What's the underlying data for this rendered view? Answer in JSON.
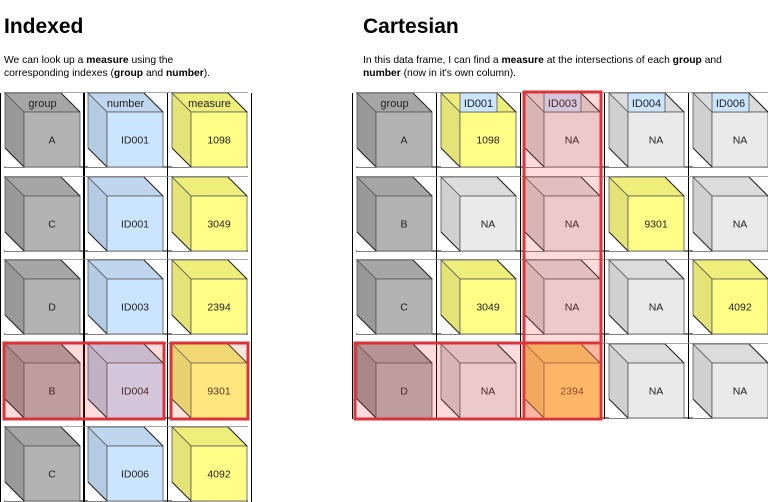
{
  "indexed": {
    "title": "Indexed",
    "description": [
      {
        "t": "We can look up a "
      },
      {
        "t": "measure",
        "b": true
      },
      {
        "t": " using the"
      },
      {
        "br": true
      },
      {
        "t": "corresponding indexes ("
      },
      {
        "t": "group",
        "b": true
      },
      {
        "t": " and "
      },
      {
        "t": "number",
        "b": true
      },
      {
        "t": ")."
      }
    ],
    "columns": [
      {
        "header": "group",
        "color": "grey"
      },
      {
        "header": "number",
        "color": "blue"
      },
      {
        "header": "measure",
        "color": "yellow"
      }
    ],
    "rows": [
      {
        "cells": [
          "A",
          "ID001",
          "1098"
        ]
      },
      {
        "cells": [
          "C",
          "ID001",
          "3049"
        ]
      },
      {
        "cells": [
          "D",
          "ID003",
          "2394"
        ]
      },
      {
        "cells": [
          "B",
          "ID004",
          "9301"
        ],
        "highlighted": true
      },
      {
        "cells": [
          "C",
          "ID006",
          "4092"
        ]
      }
    ]
  },
  "cartesian": {
    "title": "Cartesian",
    "description": [
      {
        "t": "In this data frame, I can find a "
      },
      {
        "t": "measure",
        "b": true
      },
      {
        "t": " at the intersections of each "
      },
      {
        "t": "group",
        "b": true
      },
      {
        "t": " and"
      },
      {
        "br": true
      },
      {
        "t": "number",
        "b": true
      },
      {
        "t": " (now in it's own column)."
      }
    ],
    "columns": [
      {
        "header": "group",
        "label_style": "top"
      },
      {
        "header": "ID001",
        "label_style": "tag"
      },
      {
        "header": "ID003",
        "label_style": "tag"
      },
      {
        "header": "ID004",
        "label_style": "tag"
      },
      {
        "header": "ID006",
        "label_style": "tag"
      }
    ],
    "rows": [
      {
        "cells": [
          {
            "v": "A",
            "c": "grey"
          },
          {
            "v": "1098",
            "c": "yellow"
          },
          {
            "v": "NA",
            "c": "light"
          },
          {
            "v": "NA",
            "c": "light"
          },
          {
            "v": "NA",
            "c": "light"
          }
        ]
      },
      {
        "cells": [
          {
            "v": "B",
            "c": "grey"
          },
          {
            "v": "NA",
            "c": "light"
          },
          {
            "v": "NA",
            "c": "light"
          },
          {
            "v": "9301",
            "c": "yellow"
          },
          {
            "v": "NA",
            "c": "light"
          }
        ]
      },
      {
        "cells": [
          {
            "v": "C",
            "c": "grey"
          },
          {
            "v": "3049",
            "c": "yellow"
          },
          {
            "v": "NA",
            "c": "light"
          },
          {
            "v": "NA",
            "c": "light"
          },
          {
            "v": "4092",
            "c": "yellow"
          }
        ]
      },
      {
        "cells": [
          {
            "v": "D",
            "c": "grey"
          },
          {
            "v": "NA",
            "c": "light"
          },
          {
            "v": "2394",
            "c": "yellow"
          },
          {
            "v": "NA",
            "c": "light"
          },
          {
            "v": "NA",
            "c": "light"
          }
        ]
      }
    ],
    "highlight": {
      "row": 3,
      "column": 2
    }
  },
  "palette": {
    "grey": {
      "front": "#b3b3b3",
      "top": "#a6a6a6",
      "side": "#999999"
    },
    "blue": {
      "front": "#cce5ff",
      "top": "#bfd6ee",
      "side": "#b3cbe3"
    },
    "yellow": {
      "front": "#ffff88",
      "top": "#eeee7a",
      "side": "#e3e377"
    },
    "light": {
      "front": "#eaeaea",
      "top": "#dcdcdc",
      "side": "#d0d0d0"
    },
    "tag": "#cce5ff",
    "highlight_fill": "rgba(255,60,60,0.18)",
    "highlight_stroke": "#d9343a"
  }
}
